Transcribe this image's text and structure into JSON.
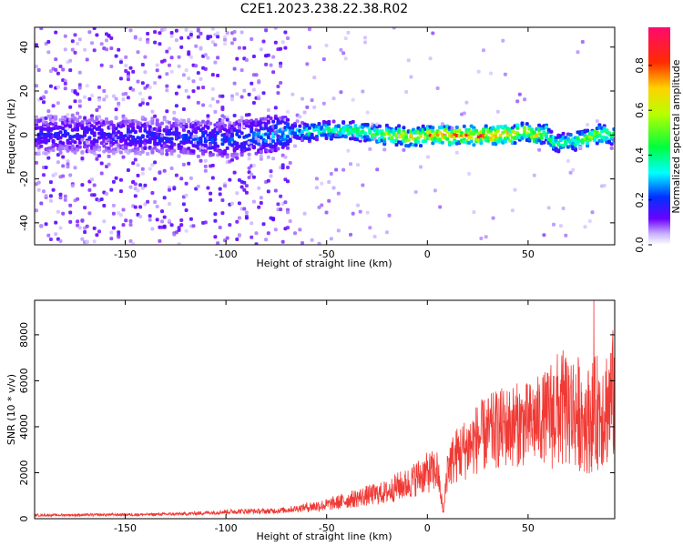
{
  "title": "C2E1.2023.238.22.38.R02",
  "chart_data": [
    {
      "type": "heatmap",
      "xlabel": "Height of straight line (km)",
      "ylabel": "Frequency (Hz)",
      "xlim": [
        -195,
        93
      ],
      "ylim": [
        -50,
        49
      ],
      "xticks": [
        -150,
        -100,
        -50,
        0,
        50
      ],
      "xtick_labels": [
        "-150",
        "-100",
        "-50",
        "0",
        "50"
      ],
      "yticks": [
        -40,
        -20,
        0,
        20,
        40
      ],
      "ytick_labels": [
        "-40",
        "-20",
        "0",
        "20",
        "40"
      ],
      "colorbar": {
        "label": "Normalized spectral amplitude",
        "range": [
          0,
          0.97
        ],
        "ticks": [
          0.0,
          0.2,
          0.4,
          0.6,
          0.8
        ],
        "tick_labels": [
          "0.0",
          "0.2",
          "0.4",
          "0.6",
          "0.8"
        ],
        "colormap": "rainbow"
      },
      "ridge": {
        "x": [
          -195,
          -150,
          -100,
          -70,
          -50,
          -30,
          -20,
          -10,
          0,
          10,
          20,
          30,
          40,
          48,
          52,
          58,
          62,
          68,
          72,
          80,
          85,
          93
        ],
        "y": [
          0,
          0,
          -2,
          1,
          2,
          1,
          0,
          -1,
          0,
          0,
          0,
          0,
          0,
          2,
          -1,
          1,
          -3,
          -4,
          -3,
          -1,
          0,
          -1
        ],
        "amplitude": [
          0.2,
          0.2,
          0.25,
          0.35,
          0.45,
          0.55,
          0.6,
          0.7,
          0.8,
          0.85,
          0.85,
          0.9,
          0.85,
          0.6,
          0.75,
          0.6,
          0.5,
          0.45,
          0.5,
          0.6,
          0.6,
          0.55
        ]
      },
      "grid": false
    },
    {
      "type": "line",
      "xlabel": "Height of straight line (km)",
      "ylabel": "SNR (10 * v/v)",
      "xlim": [
        -195,
        93
      ],
      "ylim": [
        0,
        9500
      ],
      "xticks": [
        -150,
        -100,
        -50,
        0,
        50
      ],
      "xtick_labels": [
        "-150",
        "-100",
        "-50",
        "0",
        "50"
      ],
      "yticks": [
        0,
        2000,
        4000,
        6000,
        8000
      ],
      "ytick_labels": [
        "0",
        "2000",
        "4000",
        "6000",
        "8000"
      ],
      "color": "#f03a35",
      "grid": false,
      "series": [
        {
          "x": [
            -195,
            -180,
            -160,
            -140,
            -120,
            -100,
            -90,
            -80,
            -70,
            -60,
            -50,
            -40,
            -30,
            -20,
            -15,
            -10,
            -5,
            0,
            5,
            8,
            10,
            15,
            20,
            25,
            30,
            35,
            40,
            45,
            50,
            55,
            60,
            65,
            70,
            75,
            80,
            85,
            90,
            93
          ],
          "y": [
            150,
            160,
            170,
            180,
            210,
            300,
            330,
            320,
            380,
            500,
            600,
            800,
            1000,
            1150,
            1400,
            1500,
            1800,
            2000,
            2100,
            200,
            2300,
            2800,
            3100,
            3500,
            3700,
            3900,
            4000,
            4100,
            4100,
            4300,
            4500,
            4700,
            4800,
            4600,
            4300,
            4700,
            5000,
            5500
          ]
        }
      ]
    }
  ]
}
